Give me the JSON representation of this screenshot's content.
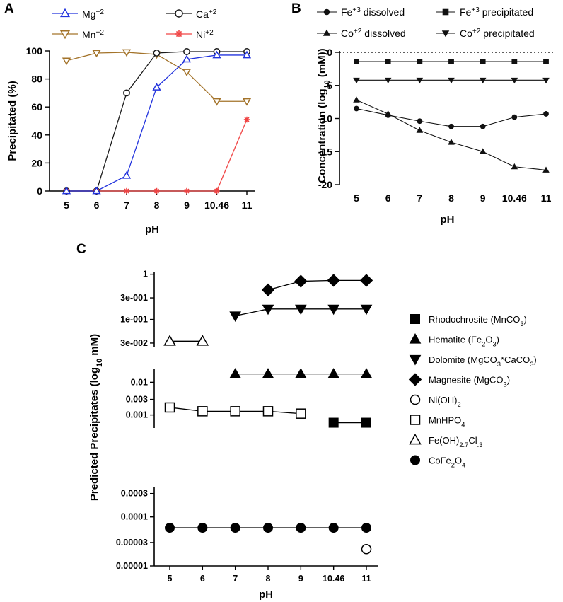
{
  "figure": {
    "panels": [
      {
        "letter": "A"
      },
      {
        "letter": "B"
      },
      {
        "letter": "C"
      }
    ]
  },
  "chart_data": [
    {
      "id": "A",
      "type": "line",
      "xlabel": "pH",
      "ylabel": "Precipitated (%)",
      "categories": [
        "5",
        "6",
        "7",
        "8",
        "9",
        "10.46",
        "11"
      ],
      "ylim": [
        0,
        100
      ],
      "yticks": [
        0,
        20,
        40,
        60,
        80,
        100
      ],
      "legend_position": "top",
      "series": [
        {
          "name": "Mg",
          "charge": "+2",
          "color": "#2233dd",
          "marker": "triangle-up-open",
          "values": [
            0,
            0,
            11,
            74,
            94,
            97,
            97
          ]
        },
        {
          "name": "Ca",
          "charge": "+2",
          "color": "#1a1a1a",
          "marker": "circle-open",
          "values": [
            0,
            0,
            70,
            98.5,
            99.5,
            99.5,
            99.5
          ]
        },
        {
          "name": "Mn",
          "charge": "+2",
          "color": "#a3732a",
          "marker": "triangle-down-open",
          "values": [
            93,
            98.5,
            99,
            97.5,
            85,
            64,
            64
          ]
        },
        {
          "name": "Ni",
          "charge": "+2",
          "color": "#f04444",
          "marker": "asterisk",
          "values": [
            0,
            0,
            0,
            0,
            0,
            0,
            51
          ]
        }
      ]
    },
    {
      "id": "B",
      "type": "line",
      "xlabel": "pH",
      "ylabel_parts": [
        "Concentration (log",
        "10",
        " (mM))"
      ],
      "categories": [
        "5",
        "6",
        "7",
        "8",
        "9",
        "10.46",
        "11"
      ],
      "ylim": [
        -20,
        0
      ],
      "yticks": [
        0,
        -5,
        -10,
        -15,
        -20
      ],
      "zero_reference_line": "dotted",
      "legend_position": "top",
      "series": [
        {
          "name": "Fe",
          "charge": "+3",
          "suffix": " dissolved",
          "color": "#111111",
          "marker": "circle-filled",
          "values": [
            -8.5,
            -9.5,
            -10.4,
            -11.2,
            -11.2,
            -9.8,
            -9.3
          ]
        },
        {
          "name": "Fe",
          "charge": "+3",
          "suffix": " precipitated",
          "color": "#111111",
          "marker": "square-filled",
          "values": [
            -1.4,
            -1.4,
            -1.4,
            -1.4,
            -1.4,
            -1.4,
            -1.4
          ]
        },
        {
          "name": "Co",
          "charge": "+2",
          "suffix": " dissolved",
          "color": "#111111",
          "marker": "triangle-up-filled",
          "values": [
            -7.2,
            -9.3,
            -11.8,
            -13.6,
            -15.0,
            -17.3,
            -17.8
          ]
        },
        {
          "name": "Co",
          "charge": "+2",
          "suffix": " precipitated",
          "color": "#111111",
          "marker": "triangle-down-filled",
          "values": [
            -4.2,
            -4.2,
            -4.2,
            -4.2,
            -4.2,
            -4.2,
            -4.2
          ]
        }
      ]
    },
    {
      "id": "C",
      "type": "line",
      "yscale": "log",
      "segmented_y_axis": true,
      "xlabel": "pH",
      "ylabel_parts": [
        "Predicted Precipitates (log",
        "10",
        " mM)"
      ],
      "categories": [
        "5",
        "6",
        "7",
        "8",
        "9",
        "10.46",
        "11"
      ],
      "y_segments": [
        {
          "range": [
            1e-05,
            0.0004
          ],
          "ticks": [
            "0.0003",
            "0.0001",
            "0.00003",
            "0.00001"
          ]
        },
        {
          "range": [
            0.0004,
            0.025
          ],
          "ticks": [
            "0.01",
            "0.003",
            "0.001"
          ]
        },
        {
          "range": [
            0.025,
            1.1
          ],
          "ticks": [
            "1",
            "3e-001",
            "1e-001",
            "3e-002"
          ]
        }
      ],
      "legend_position": "right",
      "series": [
        {
          "name": "Rhodochrosite (MnCO",
          "sub": "3",
          "tail": ")",
          "marker": "square-filled",
          "values": [
            null,
            null,
            null,
            null,
            null,
            0.00058,
            0.00058
          ]
        },
        {
          "name": "Hematite (Fe",
          "sub": "2",
          "mid": "O",
          "sub2": "3",
          "tail": ")",
          "marker": "triangle-up-filled",
          "values": [
            null,
            null,
            0.018,
            0.018,
            0.018,
            0.018,
            0.018
          ]
        },
        {
          "name": "Dolomite (MgCO",
          "sub": "3",
          "mid": "*CaCO",
          "sub2": "3",
          "tail": ")",
          "marker": "triangle-down-filled",
          "values": [
            null,
            null,
            0.12,
            0.17,
            0.17,
            0.17,
            0.17
          ]
        },
        {
          "name": "Magnesite (MgCO",
          "sub": "3",
          "tail": ")",
          "marker": "diamond-filled",
          "values": [
            null,
            null,
            null,
            0.45,
            0.7,
            0.73,
            0.73
          ]
        },
        {
          "name": "Ni(OH)",
          "sub": "2",
          "tail": "",
          "marker": "circle-open",
          "values": [
            null,
            null,
            null,
            null,
            null,
            null,
            2.2e-05
          ]
        },
        {
          "name": "MnHPO",
          "sub": "4",
          "tail": "",
          "marker": "square-open",
          "values": [
            0.0017,
            0.0013,
            0.0013,
            0.0013,
            0.0011,
            null,
            null
          ]
        },
        {
          "name": "Fe(OH)",
          "sub": "2.7",
          "mid": "Cl",
          "sub2": ".3",
          "tail": "",
          "marker": "triangle-up-open",
          "values": [
            0.033,
            0.033,
            null,
            null,
            null,
            null,
            null
          ]
        },
        {
          "name": "CoFe",
          "sub": "2",
          "mid": "O",
          "sub2": "4",
          "tail": "",
          "marker": "circle-filled",
          "values": [
            6e-05,
            6e-05,
            6e-05,
            6e-05,
            6e-05,
            6e-05,
            6e-05
          ]
        }
      ]
    }
  ]
}
